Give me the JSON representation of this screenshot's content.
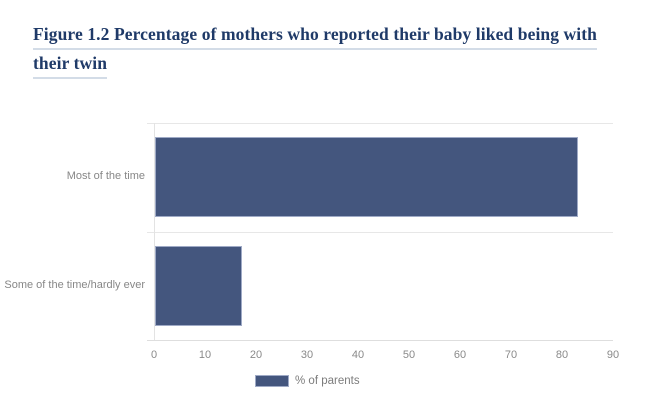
{
  "page": {
    "background_color": "#FFFFFF"
  },
  "title": {
    "text": "Figure 1.2 Percentage of mothers who reported their baby liked being with their twin",
    "lines": [
      "Figure 1.2 Percentage of mothers who reported their baby liked being with",
      "their twin"
    ],
    "color": "#1F3A68",
    "underline_color": "#D3DCE7"
  },
  "chart_data": {
    "type": "bar",
    "orientation": "horizontal",
    "title": "Figure 1.2 Percentage of mothers who reported their baby liked being with their twin",
    "categories": [
      "Most of the time",
      "Some of the time/hardly ever"
    ],
    "series": [
      {
        "name": "% of parents",
        "values": [
          83,
          17
        ],
        "color": "#44567E"
      }
    ],
    "xlabel": "",
    "ylabel": "",
    "xlim": [
      0,
      90
    ],
    "x_ticks": [
      0,
      10,
      20,
      30,
      40,
      50,
      60,
      70,
      80,
      90
    ],
    "grid": {
      "vertical": false,
      "category_boundaries": true,
      "color": "#E7E7E7"
    },
    "legend": {
      "position": "bottom",
      "label": "% of parents",
      "swatch_color": "#44567E"
    },
    "tick_label_color": "#8A8A8A",
    "category_label_color": "#878787"
  }
}
